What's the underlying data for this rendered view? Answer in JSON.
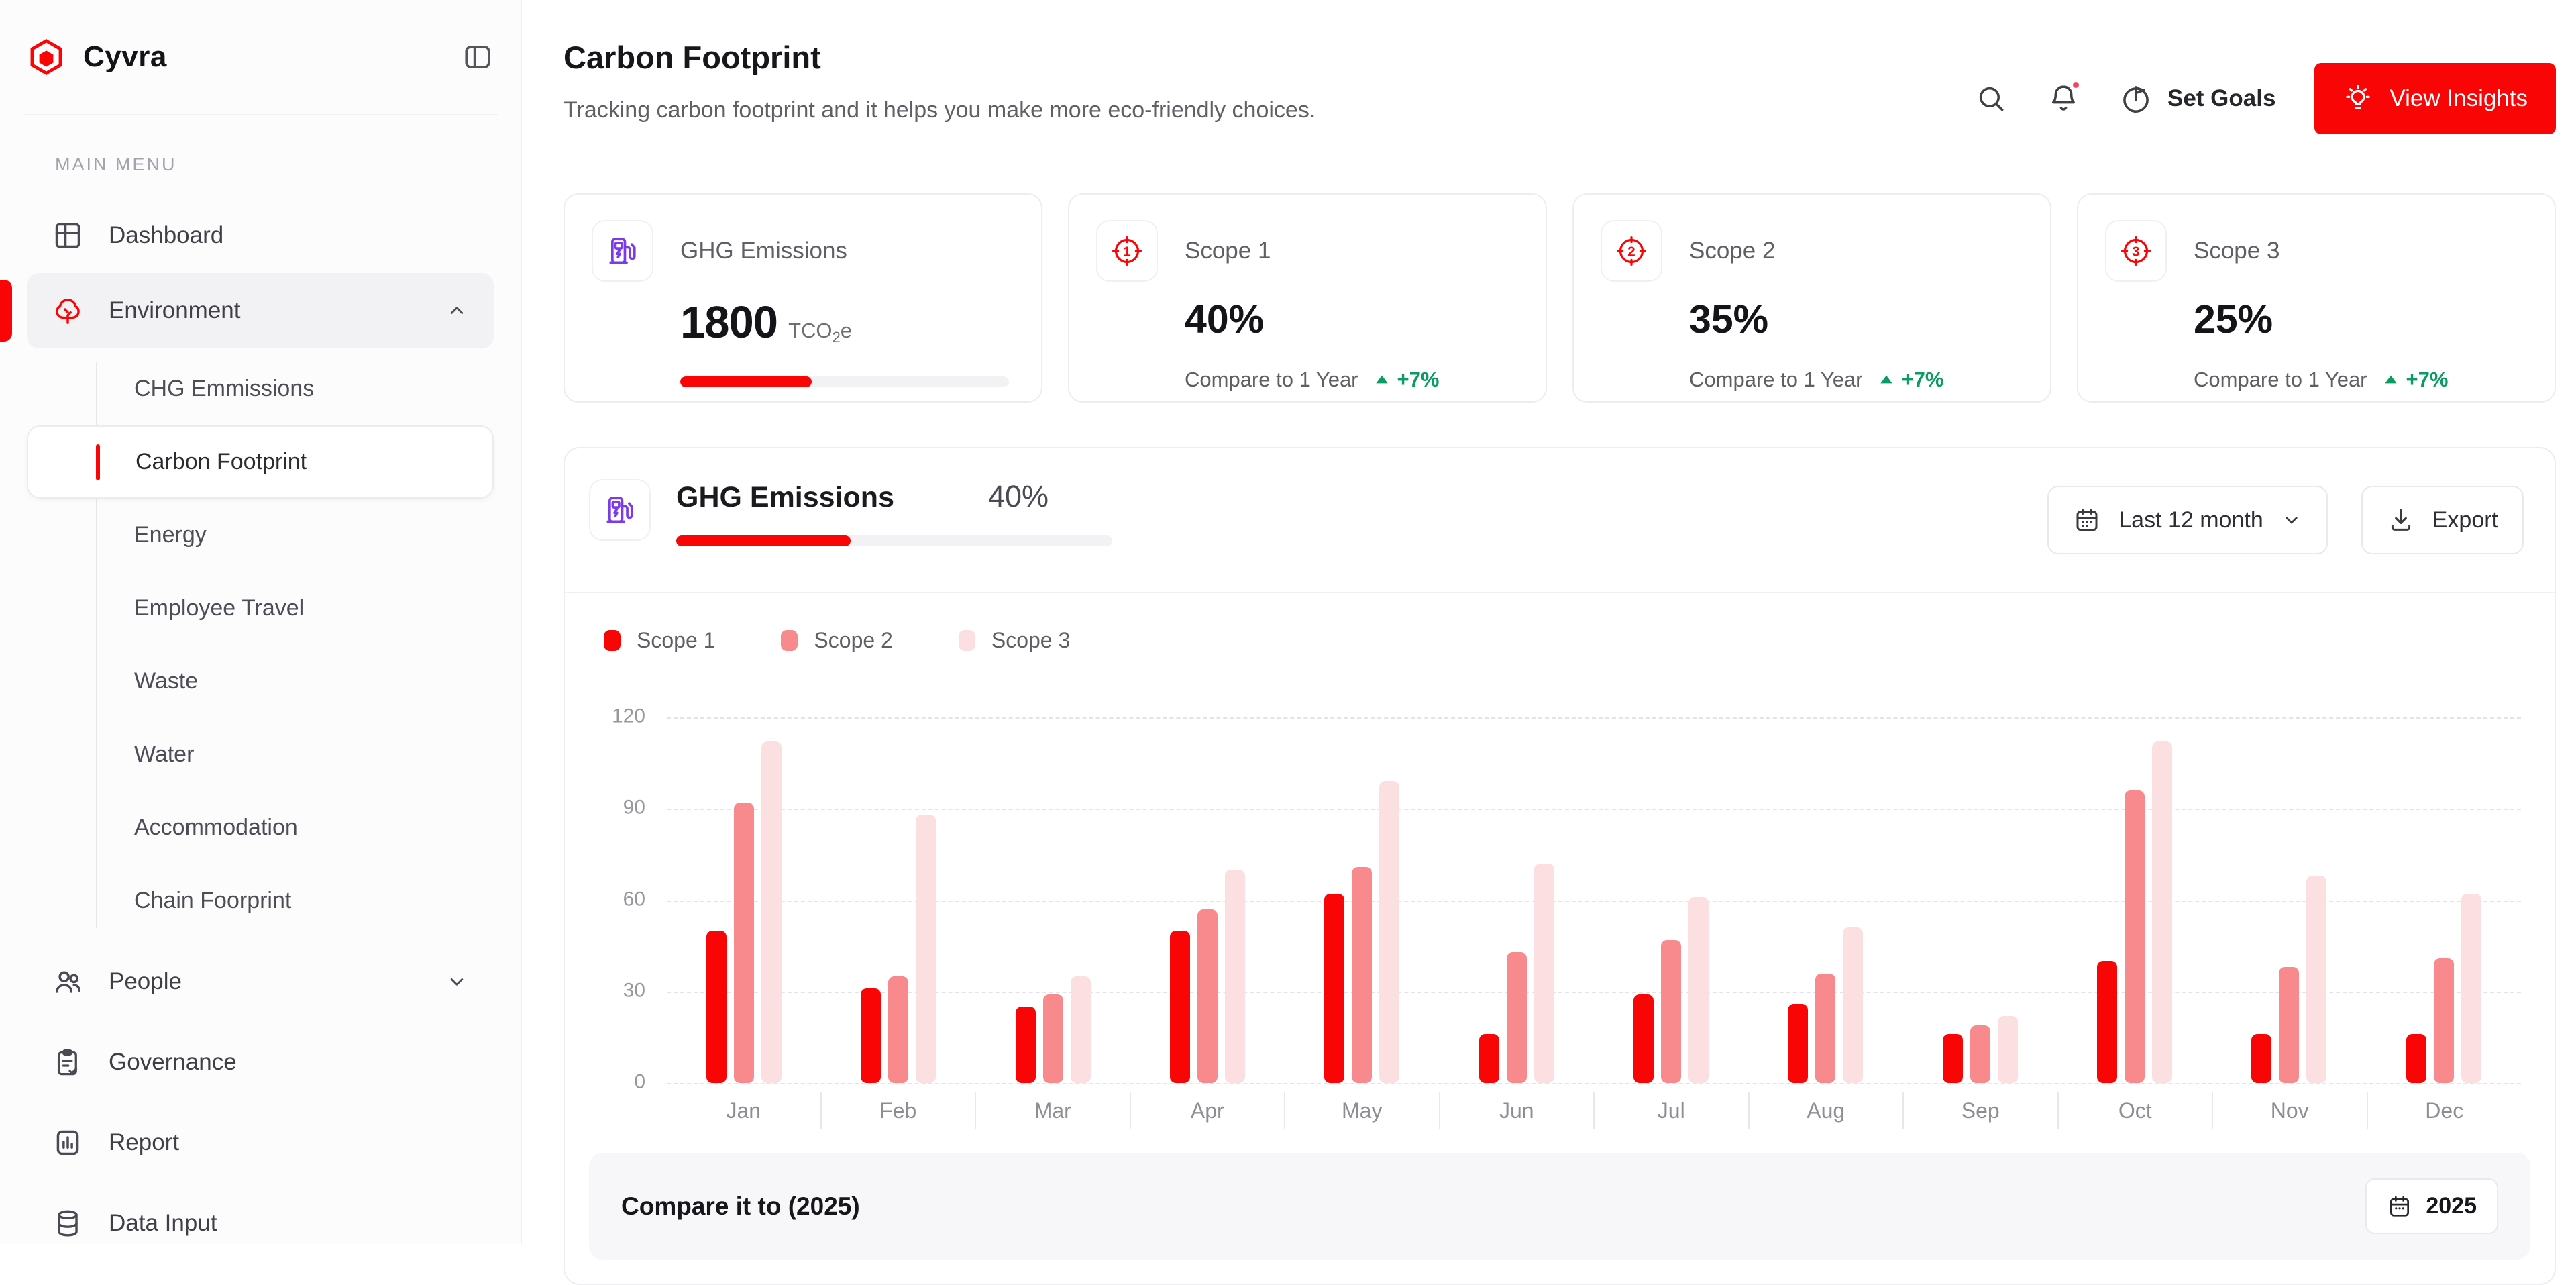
{
  "sidebar": {
    "logo_text": "Cyvra",
    "section_label": "MAIN MENU",
    "dashboard_label": "Dashboard",
    "environment_label": "Environment",
    "env_children": [
      {
        "label": "CHG Emmissions"
      },
      {
        "label": "Carbon Footprint",
        "active": true
      },
      {
        "label": "Energy"
      },
      {
        "label": "Employee Travel"
      },
      {
        "label": "Waste"
      },
      {
        "label": "Water"
      },
      {
        "label": "Accommodation"
      },
      {
        "label": "Chain Foorprint"
      }
    ],
    "people_label": "People",
    "governance_label": "Governance",
    "report_label": "Report",
    "data_input_label": "Data Input"
  },
  "header": {
    "title": "Carbon Footprint",
    "subtitle": "Tracking carbon footprint and it helps you make more eco-friendly choices.",
    "set_goals_label": "Set Goals",
    "view_insights_label": "View Insights"
  },
  "stat_cards": {
    "ghg": {
      "label": "GHG Emissions",
      "value": "1800",
      "unit_prefix": "TCO",
      "unit_sub": "2",
      "unit_suffix": "e",
      "progress_pct": 40
    },
    "scopes": [
      {
        "num": "1",
        "label": "Scope 1",
        "value": "40%",
        "compare_label": "Compare to 1 Year",
        "delta": "+7%"
      },
      {
        "num": "2",
        "label": "Scope 2",
        "value": "35%",
        "compare_label": "Compare to 1 Year",
        "delta": "+7%"
      },
      {
        "num": "3",
        "label": "Scope 3",
        "value": "25%",
        "compare_label": "Compare to 1 Year",
        "delta": "+7%"
      }
    ]
  },
  "panel": {
    "title": "GHG Emissions",
    "percent": "40%",
    "progress_pct": 40,
    "range_label": "Last 12 month",
    "export_label": "Export",
    "compare_title": "Compare it to (2025)",
    "year_label": "2025"
  },
  "chart_data": {
    "type": "bar",
    "title": "GHG Emissions by scope over last 12 months",
    "categories": [
      "Jan",
      "Feb",
      "Mar",
      "Apr",
      "May",
      "Jun",
      "Jul",
      "Aug",
      "Sep",
      "Oct",
      "Nov",
      "Dec"
    ],
    "series": [
      {
        "name": "Scope 1",
        "color": "#F90506",
        "values": [
          50,
          31,
          25,
          50,
          62,
          16,
          29,
          26,
          16,
          40,
          16,
          16
        ]
      },
      {
        "name": "Scope 2",
        "color": "#F8898C",
        "values": [
          92,
          35,
          29,
          57,
          71,
          43,
          47,
          36,
          19,
          96,
          38,
          41
        ]
      },
      {
        "name": "Scope 3",
        "color": "#FBDFE1",
        "values": [
          112,
          88,
          35,
          70,
          99,
          72,
          61,
          51,
          22,
          112,
          68,
          62
        ]
      }
    ],
    "ylim": [
      0,
      120
    ],
    "yticks": [
      120,
      90,
      60,
      30,
      0
    ],
    "grid": "dashed-horizontal",
    "legend_position": "top-left"
  },
  "colors": {
    "primary_red": "#F90506",
    "scope2": "#F8898C",
    "scope3": "#FBDFE1",
    "positive_green": "#0C9B63",
    "ghg_purple": "#7C3AED",
    "notification_dot": "#F4435F"
  }
}
